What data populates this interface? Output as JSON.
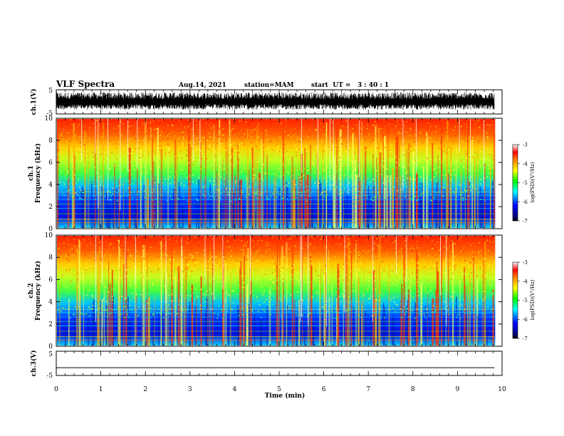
{
  "header": {
    "title": "VLF Spectra",
    "date": "Aug.14, 2021",
    "station": "station=MAM",
    "start_ut": "start  UT =   3 : 40 : 1"
  },
  "chart_data": [
    {
      "type": "line",
      "panel": "ch1-waveform",
      "ylabel": "ch.1(V)",
      "ylim": [
        -5,
        5
      ],
      "yticks": [
        "5",
        "-5"
      ],
      "x_range_min": [
        0,
        9.83
      ],
      "description_values": "dense noise-like waveform, amplitude mostly between -3 and 4 V"
    },
    {
      "type": "heatmap",
      "panel": "ch1-spectrogram",
      "ylabel_line1": "ch.1",
      "ylabel_line2": "Frequency (kHz)",
      "ylim": [
        0,
        10
      ],
      "yticks": [
        "0",
        "2",
        "4",
        "6",
        "8",
        "10"
      ],
      "x_range_min": [
        0,
        9.83
      ],
      "colorbar": {
        "label": "log(PSD)(V²/Hz)",
        "min": -7,
        "max": -3,
        "ticks": [
          "-3",
          "-4",
          "-5",
          "-6",
          "-7"
        ]
      }
    },
    {
      "type": "heatmap",
      "panel": "ch2-spectrogram",
      "ylabel_line1": "ch.2",
      "ylabel_line2": "Frequency (kHz)",
      "ylim": [
        0,
        10
      ],
      "yticks": [
        "0",
        "2",
        "4",
        "6",
        "8",
        "10"
      ],
      "x_range_min": [
        0,
        9.83
      ],
      "colorbar": {
        "label": "log(PSD)(V²/Hz)",
        "min": -7,
        "max": -3,
        "ticks": [
          "-3",
          "-4",
          "-5",
          "-6",
          "-7"
        ]
      }
    },
    {
      "type": "line",
      "panel": "ch3-waveform",
      "ylabel": "ch.3(V)",
      "ylim": [
        -5,
        5
      ],
      "yticks": [
        "5",
        "-5"
      ],
      "series": [
        {
          "x": [
            0,
            9.83
          ],
          "y": [
            -1.8,
            -1.8
          ]
        }
      ]
    }
  ],
  "xaxis": {
    "label": "Time (min)",
    "xlim": [
      0,
      10
    ],
    "ticks": [
      "0",
      "1",
      "2",
      "3",
      "4",
      "5",
      "6",
      "7",
      "8",
      "9",
      "10"
    ]
  },
  "colors": {
    "colormap": [
      "#00008f",
      "#0000ff",
      "#00ffff",
      "#00ff00",
      "#ffff00",
      "#ff8000",
      "#ff0000",
      "#ffffff"
    ]
  }
}
